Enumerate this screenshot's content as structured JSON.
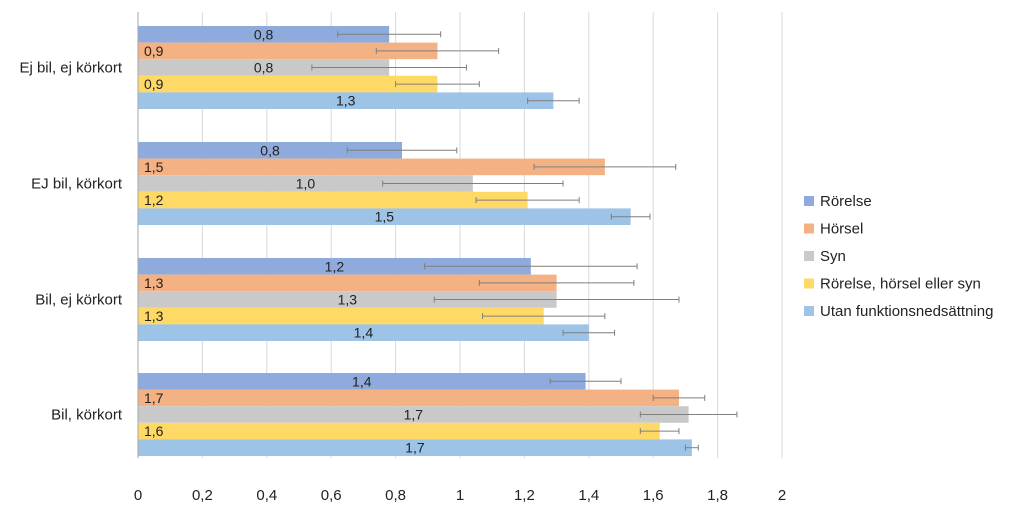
{
  "chart_data": {
    "type": "bar",
    "orientation": "horizontal",
    "title": "",
    "xlabel": "",
    "ylabel": "",
    "xlim": [
      0,
      2
    ],
    "xticks": [
      0,
      0.2,
      0.4,
      0.6,
      0.8,
      1,
      1.2,
      1.4,
      1.6,
      1.8,
      2
    ],
    "xtick_labels": [
      "0",
      "0,2",
      "0,4",
      "0,6",
      "0,8",
      "1",
      "1,2",
      "1,4",
      "1,6",
      "1,8",
      "2"
    ],
    "grid": true,
    "legend_position": "right",
    "categories": [
      "Ej bil, ej körkort",
      "EJ bil, körkort",
      "Bil, ej körkort",
      "Bil, körkort"
    ],
    "series": [
      {
        "name": "Rörelse",
        "color": "#8faadc",
        "values": [
          0.78,
          0.82,
          1.22,
          1.39
        ],
        "labels": [
          "0,8",
          "0,8",
          "1,2",
          "1,4"
        ],
        "error_low": [
          0.62,
          0.65,
          0.89,
          1.28
        ],
        "error_high": [
          0.94,
          0.99,
          1.55,
          1.5
        ]
      },
      {
        "name": "Hörsel",
        "color": "#f4b183",
        "values": [
          0.93,
          1.45,
          1.3,
          1.68
        ],
        "labels": [
          "0,9",
          "1,5",
          "1,3",
          "1,7"
        ],
        "error_low": [
          0.74,
          1.23,
          1.06,
          1.6
        ],
        "error_high": [
          1.12,
          1.67,
          1.54,
          1.76
        ]
      },
      {
        "name": "Syn",
        "color": "#c9c9c9",
        "values": [
          0.78,
          1.04,
          1.3,
          1.71
        ],
        "labels": [
          "0,8",
          "1,0",
          "1,3",
          "1,7"
        ],
        "error_low": [
          0.54,
          0.76,
          0.92,
          1.56
        ],
        "error_high": [
          1.02,
          1.32,
          1.68,
          1.86
        ]
      },
      {
        "name": "Rörelse, hörsel eller syn",
        "color": "#ffd966",
        "values": [
          0.93,
          1.21,
          1.26,
          1.62
        ],
        "labels": [
          "0,9",
          "1,2",
          "1,3",
          "1,6"
        ],
        "error_low": [
          0.8,
          1.05,
          1.07,
          1.56
        ],
        "error_high": [
          1.06,
          1.37,
          1.45,
          1.68
        ]
      },
      {
        "name": "Utan funktionsnedsättning",
        "color": "#9dc3e6",
        "values": [
          1.29,
          1.53,
          1.4,
          1.72
        ],
        "labels": [
          "1,3",
          "1,5",
          "1,4",
          "1,7"
        ],
        "error_low": [
          1.21,
          1.47,
          1.32,
          1.7
        ],
        "error_high": [
          1.37,
          1.59,
          1.48,
          1.74
        ]
      }
    ]
  }
}
